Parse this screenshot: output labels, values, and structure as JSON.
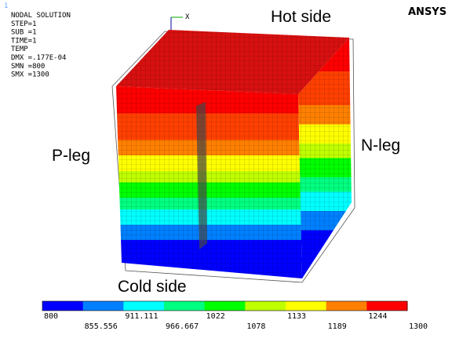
{
  "window": {
    "number": "1",
    "logo": "ANSYS"
  },
  "info": {
    "lines": [
      "NODAL SOLUTION",
      "STEP=1",
      "SUB =1",
      "TIME=1",
      "TEMP",
      "DMX =.177E-04",
      "SMN =800",
      "SMX =1300"
    ]
  },
  "annotations": {
    "hot": "Hot side",
    "p_leg": "P-leg",
    "n_leg": "N-leg",
    "cold": "Cold side"
  },
  "legend": {
    "colors": [
      "#0000ff",
      "#0080ff",
      "#00ffff",
      "#00ff80",
      "#00ff00",
      "#c0ff00",
      "#ffff00",
      "#ff8000",
      "#ff0000"
    ],
    "labels": [
      "800",
      "855.556",
      "911.111",
      "966.667",
      "1022",
      "1078",
      "1133",
      "1189",
      "1244",
      "1300"
    ]
  }
}
